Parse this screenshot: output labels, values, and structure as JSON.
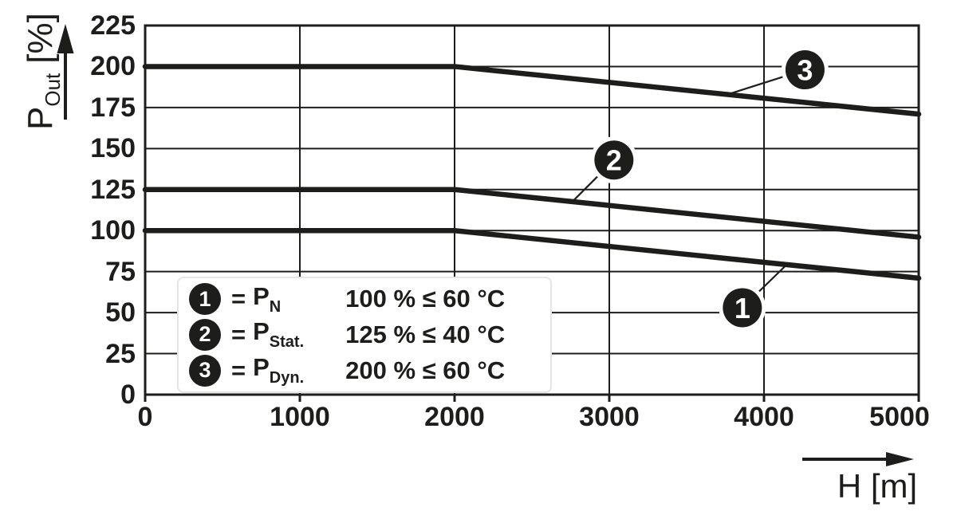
{
  "chart_data": {
    "type": "line",
    "title": "",
    "xlabel": "H [m]",
    "ylabel": "P_Out [%]",
    "ylabel_parts": {
      "main": "P",
      "sub": "Out",
      "unit": "[%]"
    },
    "xlim": [
      0,
      5000
    ],
    "ylim": [
      0,
      225
    ],
    "x_ticks": [
      0,
      1000,
      2000,
      3000,
      4000,
      5000
    ],
    "y_ticks": [
      0,
      25,
      50,
      75,
      100,
      125,
      150,
      175,
      200,
      225
    ],
    "grid": true,
    "legend_position": "inside-bottom-left",
    "series": [
      {
        "name": "1",
        "symbol": "P",
        "symbol_sub": "N",
        "points": [
          [
            0,
            100
          ],
          [
            2000,
            100
          ],
          [
            5000,
            71
          ]
        ]
      },
      {
        "name": "2",
        "symbol": "P",
        "symbol_sub": "Stat.",
        "points": [
          [
            0,
            125
          ],
          [
            2000,
            125
          ],
          [
            5000,
            96
          ]
        ]
      },
      {
        "name": "3",
        "symbol": "P",
        "symbol_sub": "Dyn.",
        "points": [
          [
            0,
            200
          ],
          [
            2000,
            200
          ],
          [
            5000,
            171
          ]
        ]
      }
    ],
    "markers": [
      {
        "num": "1",
        "cx": 3860,
        "cy": 53,
        "tx": 4155,
        "ty": 80
      },
      {
        "num": "2",
        "cx": 3030,
        "cy": 143,
        "tx": 2765,
        "ty": 118
      },
      {
        "num": "3",
        "cx": 4265,
        "cy": 198,
        "tx": 3765,
        "ty": 183
      }
    ],
    "legend": {
      "rows": [
        {
          "num": "1",
          "eq": "=",
          "sym": "P",
          "sub": "N",
          "value": "100 % ≤ 60 °C"
        },
        {
          "num": "2",
          "eq": "=",
          "sym": "P",
          "sub": "Stat.",
          "value": "125 % ≤ 40 °C"
        },
        {
          "num": "3",
          "eq": "=",
          "sym": "P",
          "sub": "Dyn.",
          "value": "200 % ≤ 60 °C"
        }
      ]
    },
    "colors": {
      "line": "#1d1d1b",
      "grid": "#1d1d1b",
      "background": "#ffffff",
      "badge_bg": "#1d1d1b",
      "badge_text": "#ffffff"
    }
  }
}
